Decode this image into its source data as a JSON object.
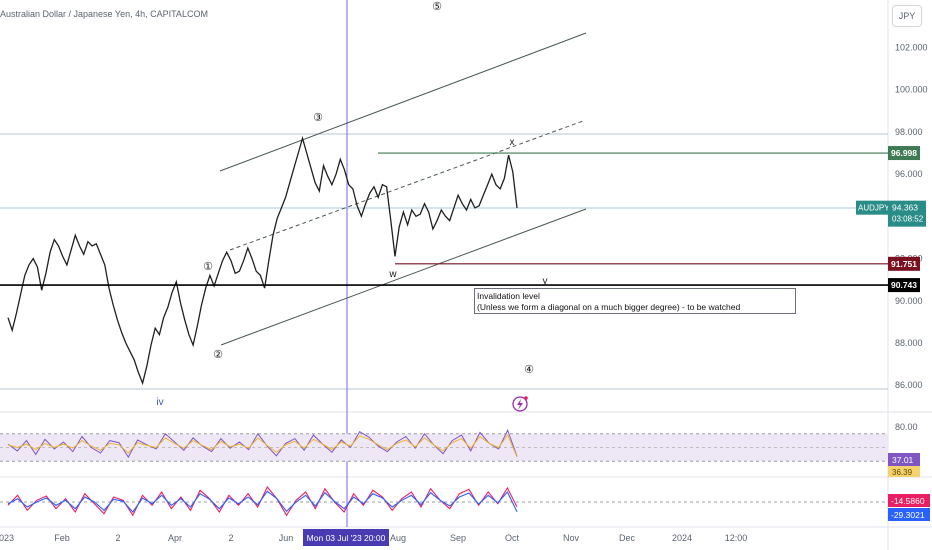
{
  "header": {
    "title": "Australian Dollar / Japanese Yen, 4h, CAPITALCOM",
    "currency": "JPY"
  },
  "chart_data": [
    {
      "type": "line",
      "panel": "price",
      "series": [
        {
          "values": [
            89.2,
            88.6,
            89.4,
            90.3,
            91.2,
            91.7,
            92.0,
            91.6,
            90.5,
            91.3,
            92.3,
            92.9,
            92.6,
            92.1,
            91.7,
            92.4,
            93.1,
            92.6,
            92.2,
            92.8,
            92.6,
            92.7,
            92.2,
            91.7,
            90.6,
            89.8,
            89.1,
            88.5,
            88.0,
            87.6,
            87.2,
            86.6,
            86.1,
            86.9,
            87.9,
            88.7,
            88.4,
            89.2,
            89.7,
            90.4,
            90.9,
            89.9,
            89.1,
            88.4,
            87.9,
            88.8,
            89.8,
            90.6,
            91.2,
            90.7,
            91.3,
            91.9,
            92.3,
            91.9,
            91.3,
            91.4,
            91.9,
            92.5,
            92.0,
            91.4,
            91.2,
            90.6,
            91.9,
            93.1,
            93.9,
            94.4,
            94.9,
            95.6,
            96.3,
            97.0,
            97.7,
            97.0,
            96.3,
            95.6,
            95.2,
            96.4,
            95.9,
            95.5,
            96.0,
            96.7,
            96.2,
            95.5,
            95.3,
            94.5,
            94.0,
            94.6,
            95.1,
            95.4,
            94.9,
            95.5,
            95.4,
            93.8,
            92.1,
            93.5,
            94.2,
            93.6,
            94.3,
            94.0,
            94.1,
            94.6,
            94.2,
            93.4,
            93.8,
            94.3,
            94.0,
            93.8,
            94.4,
            95.0,
            94.6,
            94.3,
            94.8,
            94.4,
            94.5,
            95.0,
            95.5,
            96.0,
            95.5,
            95.3,
            95.8,
            96.9,
            96.1,
            94.4
          ],
          "color": "#1f1f1f"
        }
      ],
      "y_ticks": [
        "102.000",
        "100.000",
        "98.000",
        "96.000",
        "92.000",
        "90.000",
        "88.000",
        "86.000"
      ],
      "ylim": [
        85.3,
        103.3
      ],
      "x_ticks": [
        "2023",
        "Feb",
        "2",
        "Apr",
        "2",
        "Jun",
        "Aug",
        "Sep",
        "Oct",
        "Nov",
        "Dec",
        "2024",
        "12:00"
      ],
      "crosshair_label": "Mon 03 Jul '23  20:00",
      "last_price": {
        "symbol": "AUDJPY",
        "price": "94.363",
        "countdown": "03:08:52"
      },
      "levels": [
        {
          "value": 96.998,
          "label": "96.998",
          "color": "#3e7a53"
        },
        {
          "value": 91.751,
          "label": "91.751",
          "color": "#7a1020"
        },
        {
          "value": 90.743,
          "label": "90.743",
          "color": "#000000"
        }
      ],
      "wave_labels": [
        "①",
        "②",
        "③",
        "④",
        "⑤",
        "iv",
        "w",
        "x",
        "y"
      ],
      "annotation": {
        "line1": "Invalidation level",
        "line2": "(Unless we form a diagonal on a much bigger degree) - to be watched"
      }
    },
    {
      "type": "line",
      "panel": "rsi",
      "y_ticks": [
        "80.00"
      ],
      "ylim": [
        10,
        90
      ],
      "values_label": "37.01",
      "secondary_label": "36.39",
      "series": [
        {
          "values": [
            55,
            45,
            60,
            40,
            62,
            48,
            58,
            44,
            66,
            50,
            42,
            60,
            57,
            36,
            61,
            54,
            48,
            70,
            58,
            46,
            64,
            52,
            44,
            63,
            49,
            58,
            47,
            70,
            52,
            38,
            56,
            63,
            46,
            68,
            55,
            43,
            61,
            50,
            73,
            65,
            52,
            44,
            58,
            66,
            49,
            70,
            54,
            41,
            60,
            68,
            45,
            72,
            56,
            48,
            75,
            37
          ],
          "color": "#7e57c2"
        },
        {
          "values": [
            54,
            50,
            55,
            47,
            56,
            50,
            55,
            49,
            60,
            52,
            46,
            56,
            54,
            42,
            57,
            53,
            50,
            64,
            56,
            49,
            60,
            53,
            47,
            59,
            51,
            55,
            49,
            64,
            53,
            43,
            54,
            59,
            49,
            62,
            55,
            47,
            58,
            52,
            67,
            62,
            54,
            47,
            56,
            61,
            51,
            64,
            54,
            45,
            57,
            63,
            49,
            66,
            56,
            50,
            68,
            36.4
          ],
          "color": "#f0b429"
        }
      ]
    },
    {
      "type": "line",
      "panel": "oscillator",
      "values_label": "-14.5860",
      "secondary_label": "-29.3021",
      "ylim": [
        -60,
        60
      ],
      "series": [
        {
          "values": [
            -10,
            20,
            -25,
            5,
            18,
            -20,
            10,
            -30,
            25,
            -5,
            -35,
            15,
            5,
            -40,
            20,
            -10,
            30,
            -20,
            15,
            -25,
            35,
            10,
            -30,
            20,
            -10,
            25,
            -15,
            45,
            10,
            -40,
            5,
            30,
            -20,
            40,
            0,
            -30,
            25,
            -10,
            35,
            15,
            -25,
            10,
            30,
            -15,
            40,
            5,
            -20,
            25,
            38,
            -10,
            30,
            -5,
            42,
            -14.6
          ],
          "color": "#e91e63"
        },
        {
          "values": [
            -5,
            10,
            -15,
            0,
            12,
            -10,
            5,
            -20,
            15,
            0,
            -25,
            8,
            2,
            -30,
            12,
            -5,
            20,
            -10,
            10,
            -15,
            25,
            8,
            -20,
            12,
            -5,
            15,
            -8,
            32,
            10,
            -28,
            0,
            20,
            -12,
            28,
            2,
            -20,
            15,
            -5,
            25,
            12,
            -15,
            5,
            20,
            -8,
            28,
            5,
            -12,
            15,
            27,
            -6,
            20,
            -2,
            30,
            -29.3
          ],
          "color": "#2962ff"
        }
      ]
    }
  ]
}
